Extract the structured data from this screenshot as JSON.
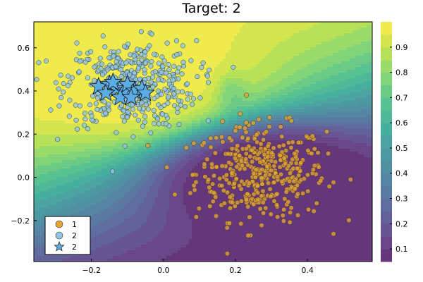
{
  "chart_data": {
    "type": "contour-scatter",
    "title": "Target: 2",
    "xlabel": "",
    "ylabel": "",
    "xlim": [
      -0.36,
      0.58
    ],
    "ylim": [
      -0.39,
      0.72
    ],
    "xticks": [
      -0.2,
      0.0,
      0.2,
      0.4
    ],
    "yticks": [
      -0.2,
      0.0,
      0.2,
      0.4,
      0.6
    ],
    "xtick_labels": [
      "−0.2",
      "0.0",
      "0.2",
      "0.4"
    ],
    "ytick_labels": [
      "−0.2",
      "0.0",
      "0.2",
      "0.4",
      "0.6"
    ],
    "grid": false,
    "legend_position": "bottom-left",
    "legend": [
      {
        "label": "1",
        "marker": "circle",
        "color": "#e3a335"
      },
      {
        "label": "2",
        "marker": "circle",
        "color": "#8fc6e6"
      },
      {
        "label": "2",
        "marker": "star",
        "color": "#5aace6"
      }
    ],
    "colorbar": {
      "min": 0.05,
      "max": 1.0,
      "ticks": [
        0.1,
        0.2,
        0.3,
        0.4,
        0.5,
        0.6,
        0.7,
        0.8,
        0.9
      ],
      "tick_labels": [
        "0.1",
        "0.2",
        "0.3",
        "0.4",
        "0.5",
        "0.6",
        "0.7",
        "0.8",
        "0.9"
      ],
      "colormap": "viridis"
    },
    "contour": {
      "description_values": "probability of target class 2; high in upper-left, low in lower-right",
      "levels": [
        0.1,
        0.15,
        0.2,
        0.25,
        0.3,
        0.35,
        0.4,
        0.45,
        0.5,
        0.55,
        0.6,
        0.65,
        0.7,
        0.75,
        0.8,
        0.85,
        0.9,
        0.95
      ]
    },
    "series": [
      {
        "name": "1",
        "marker": "circle",
        "color": "#e3a335",
        "cluster": {
          "center": [
            0.27,
            0.02
          ],
          "spread": [
            0.09,
            0.11
          ],
          "count": 420
        }
      },
      {
        "name": "2",
        "marker": "circle",
        "color": "#8fc6e6",
        "cluster": {
          "center": [
            -0.09,
            0.43
          ],
          "spread": [
            0.09,
            0.1
          ],
          "count": 420
        }
      },
      {
        "name": "2",
        "marker": "star",
        "color": "#5aace6",
        "points": [
          [
            -0.18,
            0.42
          ],
          [
            -0.15,
            0.43
          ],
          [
            -0.13,
            0.41
          ],
          [
            -0.11,
            0.4
          ],
          [
            -0.1,
            0.43
          ],
          [
            -0.08,
            0.4
          ],
          [
            -0.06,
            0.41
          ],
          [
            -0.05,
            0.39
          ],
          [
            -0.12,
            0.37
          ],
          [
            -0.16,
            0.39
          ],
          [
            -0.09,
            0.37
          ],
          [
            -0.14,
            0.44
          ]
        ]
      }
    ]
  }
}
